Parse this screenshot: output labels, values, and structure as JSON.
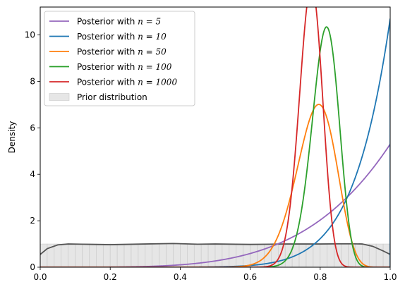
{
  "chart_data": {
    "type": "line",
    "title": "",
    "xlabel": "",
    "ylabel": "Density",
    "xlim": [
      0.0,
      1.0
    ],
    "ylim": [
      0,
      11.2
    ],
    "xticks": [
      0.0,
      0.2,
      0.4,
      0.6,
      0.8,
      1.0
    ],
    "xtick_labels": [
      "0.0",
      "0.2",
      "0.4",
      "0.6",
      "0.8",
      "1.0"
    ],
    "yticks": [
      0,
      2,
      4,
      6,
      8,
      10
    ],
    "ytick_labels": [
      "0",
      "2",
      "4",
      "6",
      "8",
      "10"
    ],
    "grid": false,
    "legend_position": "top-left",
    "series": [
      {
        "name": "Posterior with n = 5",
        "legend_prefix": "Posterior with ",
        "legend_math": "n = 5",
        "color": "#9467bd",
        "kind": "beta",
        "alpha": 5.3,
        "beta": 1.0
      },
      {
        "name": "Posterior with n = 10",
        "legend_prefix": "Posterior with ",
        "legend_math": "n = 10",
        "color": "#1f77b4",
        "kind": "beta",
        "alpha": 10.7,
        "beta": 1.0
      },
      {
        "name": "Posterior with n = 50",
        "legend_prefix": "Posterior with ",
        "legend_math": "n = 50",
        "color": "#ff7f0e",
        "kind": "beta",
        "alpha": 40,
        "beta": 11
      },
      {
        "name": "Posterior with n = 100",
        "legend_prefix": "Posterior with ",
        "legend_math": "n = 100",
        "color": "#2ca02c",
        "kind": "beta",
        "alpha": 82,
        "beta": 19
      },
      {
        "name": "Posterior with n = 1000",
        "legend_prefix": "Posterior with ",
        "legend_math": "n = 1000",
        "color": "#d62728",
        "kind": "beta",
        "alpha": 125,
        "beta": 37
      }
    ],
    "prior": {
      "name": "Prior distribution",
      "fill_color": "#e6e6e6",
      "line_color": "#555555",
      "density_x": [
        0.0,
        0.02,
        0.05,
        0.08,
        0.12,
        0.2,
        0.3,
        0.38,
        0.45,
        0.5,
        0.6,
        0.7,
        0.8,
        0.88,
        0.92,
        0.95,
        0.98,
        1.0
      ],
      "density_y": [
        0.55,
        0.8,
        0.96,
        1.0,
        0.99,
        0.97,
        1.0,
        1.02,
        0.99,
        1.0,
        0.98,
        1.0,
        1.0,
        1.01,
        1.0,
        0.9,
        0.7,
        0.55
      ]
    }
  }
}
